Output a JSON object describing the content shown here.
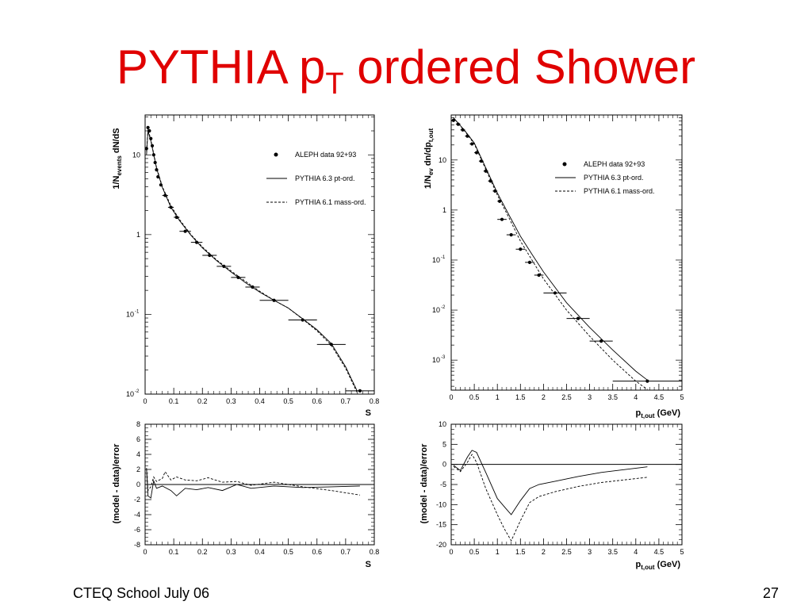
{
  "slide": {
    "title_main": "PYTHIA p",
    "title_sub": "T",
    "title_rest": " ordered Shower",
    "footer_left": "CTEQ School July 06",
    "page_number": "27"
  },
  "chart_data": [
    {
      "type": "line",
      "ylabel": "1/N_events dN/dS",
      "xlabel": "S",
      "xlim": [
        0,
        0.8
      ],
      "ylim_log10": [
        -2,
        1.5
      ],
      "log_y": true,
      "x_ticks": [
        "0",
        "0.1",
        "0.2",
        "0.3",
        "0.4",
        "0.5",
        "0.6",
        "0.7",
        "0.8"
      ],
      "y_ticks": [
        {
          "v": 10,
          "base": "10",
          "exp": ""
        },
        {
          "v": 1,
          "base": "1",
          "exp": ""
        },
        {
          "v": 0.1,
          "base": "10",
          "exp": "-1"
        },
        {
          "v": 0.01,
          "base": "10",
          "exp": "-2"
        }
      ],
      "legend": [
        "ALEPH data 92+93",
        "PYTHIA 6.3 pt-ord.",
        "PYTHIA 6.1 mass-ord."
      ],
      "data_points": [
        {
          "x": 0.005,
          "y": 12,
          "xerr": 0.002
        },
        {
          "x": 0.01,
          "y": 22,
          "xerr": 0.002
        },
        {
          "x": 0.015,
          "y": 20,
          "xerr": 0.002
        },
        {
          "x": 0.02,
          "y": 16,
          "xerr": 0.002
        },
        {
          "x": 0.025,
          "y": 13,
          "xerr": 0.002
        },
        {
          "x": 0.03,
          "y": 10,
          "xerr": 0.002
        },
        {
          "x": 0.035,
          "y": 8,
          "xerr": 0.002
        },
        {
          "x": 0.04,
          "y": 6.5,
          "xerr": 0.002
        },
        {
          "x": 0.045,
          "y": 5.3,
          "xerr": 0.002
        },
        {
          "x": 0.055,
          "y": 4.2,
          "xerr": 0.005
        },
        {
          "x": 0.07,
          "y": 3.1,
          "xerr": 0.01
        },
        {
          "x": 0.09,
          "y": 2.2,
          "xerr": 0.01
        },
        {
          "x": 0.11,
          "y": 1.65,
          "xerr": 0.01
        },
        {
          "x": 0.14,
          "y": 1.1,
          "xerr": 0.02
        },
        {
          "x": 0.18,
          "y": 0.8,
          "xerr": 0.02
        },
        {
          "x": 0.225,
          "y": 0.55,
          "xerr": 0.025
        },
        {
          "x": 0.275,
          "y": 0.4,
          "xerr": 0.025
        },
        {
          "x": 0.325,
          "y": 0.29,
          "xerr": 0.025
        },
        {
          "x": 0.375,
          "y": 0.22,
          "xerr": 0.025
        },
        {
          "x": 0.45,
          "y": 0.15,
          "xerr": 0.05
        },
        {
          "x": 0.55,
          "y": 0.085,
          "xerr": 0.05
        },
        {
          "x": 0.65,
          "y": 0.042,
          "xerr": 0.05
        },
        {
          "x": 0.75,
          "y": 0.011,
          "xerr": 0.05
        }
      ],
      "pythia63": [
        [
          0.005,
          10
        ],
        [
          0.01,
          20
        ],
        [
          0.02,
          15
        ],
        [
          0.04,
          6.8
        ],
        [
          0.06,
          3.9
        ],
        [
          0.09,
          2.2
        ],
        [
          0.12,
          1.5
        ],
        [
          0.16,
          0.98
        ],
        [
          0.2,
          0.68
        ],
        [
          0.25,
          0.47
        ],
        [
          0.3,
          0.34
        ],
        [
          0.35,
          0.25
        ],
        [
          0.4,
          0.19
        ],
        [
          0.45,
          0.15
        ],
        [
          0.5,
          0.12
        ],
        [
          0.55,
          0.088
        ],
        [
          0.6,
          0.064
        ],
        [
          0.65,
          0.043
        ],
        [
          0.7,
          0.022
        ],
        [
          0.74,
          0.011
        ]
      ],
      "pythia61": [
        [
          0.005,
          11
        ],
        [
          0.01,
          21
        ],
        [
          0.02,
          15.5
        ],
        [
          0.04,
          7
        ],
        [
          0.06,
          4
        ],
        [
          0.09,
          2.3
        ],
        [
          0.12,
          1.55
        ],
        [
          0.16,
          1.0
        ],
        [
          0.2,
          0.7
        ],
        [
          0.25,
          0.48
        ],
        [
          0.3,
          0.35
        ],
        [
          0.35,
          0.26
        ],
        [
          0.4,
          0.195
        ],
        [
          0.45,
          0.15
        ],
        [
          0.5,
          0.12
        ],
        [
          0.55,
          0.087
        ],
        [
          0.6,
          0.062
        ],
        [
          0.65,
          0.041
        ],
        [
          0.7,
          0.021
        ],
        [
          0.74,
          0.0105
        ]
      ]
    },
    {
      "type": "line",
      "ylabel": "1/N_ev dn/dp_t,out",
      "xlabel": "p_t,out (GeV)",
      "xlim": [
        0,
        5
      ],
      "ylim_log10": [
        -3.6,
        1.9
      ],
      "log_y": true,
      "x_ticks": [
        "0",
        "0.5",
        "1",
        "1.5",
        "2",
        "2.5",
        "3",
        "3.5",
        "4",
        "4.5",
        "5"
      ],
      "y_ticks": [
        {
          "v": 10,
          "base": "10",
          "exp": ""
        },
        {
          "v": 1,
          "base": "1",
          "exp": ""
        },
        {
          "v": 0.1,
          "base": "10",
          "exp": "-1"
        },
        {
          "v": 0.01,
          "base": "10",
          "exp": "-2"
        },
        {
          "v": 0.001,
          "base": "10",
          "exp": "-3"
        }
      ],
      "legend": [
        "ALEPH data 92+93",
        "PYTHIA 6.3 pt-ord.",
        "PYTHIA 6.1 mass-ord."
      ],
      "data_points": [
        {
          "x": 0.05,
          "y": 62,
          "xerr": 0.05
        },
        {
          "x": 0.15,
          "y": 52,
          "xerr": 0.05
        },
        {
          "x": 0.25,
          "y": 40,
          "xerr": 0.05
        },
        {
          "x": 0.35,
          "y": 30,
          "xerr": 0.05
        },
        {
          "x": 0.45,
          "y": 21,
          "xerr": 0.05
        },
        {
          "x": 0.55,
          "y": 14,
          "xerr": 0.05
        },
        {
          "x": 0.65,
          "y": 9.5,
          "xerr": 0.05
        },
        {
          "x": 0.75,
          "y": 6,
          "xerr": 0.05
        },
        {
          "x": 0.85,
          "y": 3.8,
          "xerr": 0.05
        },
        {
          "x": 0.95,
          "y": 2.4,
          "xerr": 0.05
        },
        {
          "x": 1.05,
          "y": 1.5,
          "xerr": 0.05
        },
        {
          "x": 1.1,
          "y": 0.65,
          "xerr": 0.1
        },
        {
          "x": 1.3,
          "y": 0.32,
          "xerr": 0.1
        },
        {
          "x": 1.5,
          "y": 0.165,
          "xerr": 0.1
        },
        {
          "x": 1.7,
          "y": 0.09,
          "xerr": 0.1
        },
        {
          "x": 1.9,
          "y": 0.05,
          "xerr": 0.1
        },
        {
          "x": 2.25,
          "y": 0.022,
          "xerr": 0.25
        },
        {
          "x": 2.75,
          "y": 0.0068,
          "xerr": 0.25
        },
        {
          "x": 3.25,
          "y": 0.0024,
          "xerr": 0.25
        },
        {
          "x": 4.25,
          "y": 0.00038,
          "xerr": 0.75
        }
      ],
      "pythia63": [
        [
          0.05,
          70
        ],
        [
          0.3,
          38
        ],
        [
          0.5,
          22
        ],
        [
          0.75,
          7
        ],
        [
          1.0,
          2.2
        ],
        [
          1.25,
          0.8
        ],
        [
          1.5,
          0.3
        ],
        [
          1.75,
          0.13
        ],
        [
          2.0,
          0.058
        ],
        [
          2.5,
          0.014
        ],
        [
          3.0,
          0.0045
        ],
        [
          3.5,
          0.0016
        ],
        [
          4.0,
          0.0006
        ],
        [
          4.25,
          0.0004
        ]
      ],
      "pythia61": [
        [
          0.05,
          70
        ],
        [
          0.3,
          37
        ],
        [
          0.5,
          21
        ],
        [
          0.75,
          6.5
        ],
        [
          1.0,
          2.0
        ],
        [
          1.25,
          0.7
        ],
        [
          1.5,
          0.24
        ],
        [
          1.75,
          0.1
        ],
        [
          2.0,
          0.042
        ],
        [
          2.5,
          0.01
        ],
        [
          3.0,
          0.003
        ],
        [
          3.5,
          0.001
        ],
        [
          4.0,
          0.00038
        ],
        [
          4.25,
          0.00026
        ]
      ]
    },
    {
      "type": "line",
      "ylabel": "(model - data)/error",
      "xlabel": "S",
      "xlim": [
        0,
        0.8
      ],
      "ylim": [
        -8,
        8
      ],
      "x_ticks": [
        "0",
        "0.1",
        "0.2",
        "0.3",
        "0.4",
        "0.5",
        "0.6",
        "0.7",
        "0.8"
      ],
      "y_ticks": [
        "8",
        "6",
        "4",
        "2",
        "0",
        "-2",
        "-4",
        "-6",
        "-8"
      ],
      "pythia63": [
        [
          0.005,
          2.2
        ],
        [
          0.01,
          -1.5
        ],
        [
          0.02,
          -1.8
        ],
        [
          0.03,
          0.5
        ],
        [
          0.04,
          -0.5
        ],
        [
          0.06,
          -0.2
        ],
        [
          0.09,
          -0.8
        ],
        [
          0.11,
          -1.5
        ],
        [
          0.14,
          -0.5
        ],
        [
          0.18,
          -0.7
        ],
        [
          0.22,
          -0.4
        ],
        [
          0.27,
          -0.8
        ],
        [
          0.32,
          0.0
        ],
        [
          0.37,
          -0.5
        ],
        [
          0.45,
          -0.2
        ],
        [
          0.55,
          -0.4
        ],
        [
          0.65,
          -0.3
        ],
        [
          0.75,
          -0.2
        ]
      ],
      "pythia61": [
        [
          0.005,
          2.0
        ],
        [
          0.01,
          -0.8
        ],
        [
          0.02,
          -0.3
        ],
        [
          0.03,
          1.0
        ],
        [
          0.04,
          0.4
        ],
        [
          0.06,
          0.8
        ],
        [
          0.07,
          1.7
        ],
        [
          0.09,
          0.6
        ],
        [
          0.11,
          1.0
        ],
        [
          0.14,
          0.6
        ],
        [
          0.18,
          0.5
        ],
        [
          0.22,
          0.9
        ],
        [
          0.27,
          0.3
        ],
        [
          0.32,
          0.4
        ],
        [
          0.37,
          -0.1
        ],
        [
          0.45,
          0.3
        ],
        [
          0.55,
          -0.3
        ],
        [
          0.65,
          -0.8
        ],
        [
          0.75,
          -1.4
        ]
      ]
    },
    {
      "type": "line",
      "ylabel": "(model - data)/error",
      "xlabel": "p_t,out (GeV)",
      "xlim": [
        0,
        5
      ],
      "ylim": [
        -20,
        10
      ],
      "x_ticks": [
        "0",
        "0.5",
        "1",
        "1.5",
        "2",
        "2.5",
        "3",
        "3.5",
        "4",
        "4.5",
        "5"
      ],
      "y_ticks": [
        "10",
        "5",
        "0",
        "-5",
        "-10",
        "-15",
        "-20"
      ],
      "pythia63": [
        [
          0.05,
          -0.2
        ],
        [
          0.2,
          -1.5
        ],
        [
          0.35,
          1.8
        ],
        [
          0.45,
          3.5
        ],
        [
          0.55,
          3.0
        ],
        [
          0.75,
          -2
        ],
        [
          1.0,
          -8.5
        ],
        [
          1.15,
          -10.5
        ],
        [
          1.3,
          -12.5
        ],
        [
          1.5,
          -9
        ],
        [
          1.7,
          -6
        ],
        [
          1.9,
          -5
        ],
        [
          2.25,
          -4.2
        ],
        [
          2.75,
          -3.0
        ],
        [
          3.25,
          -2.0
        ],
        [
          4.25,
          -0.6
        ]
      ],
      "pythia61": [
        [
          0.05,
          -0.5
        ],
        [
          0.2,
          -1.8
        ],
        [
          0.35,
          0.5
        ],
        [
          0.45,
          2.5
        ],
        [
          0.55,
          0.5
        ],
        [
          0.75,
          -6
        ],
        [
          1.0,
          -12.5
        ],
        [
          1.15,
          -16
        ],
        [
          1.3,
          -19
        ],
        [
          1.5,
          -14
        ],
        [
          1.7,
          -9.5
        ],
        [
          1.9,
          -8
        ],
        [
          2.25,
          -6.8
        ],
        [
          2.75,
          -5.5
        ],
        [
          3.25,
          -4.5
        ],
        [
          4.25,
          -3.2
        ]
      ]
    }
  ]
}
